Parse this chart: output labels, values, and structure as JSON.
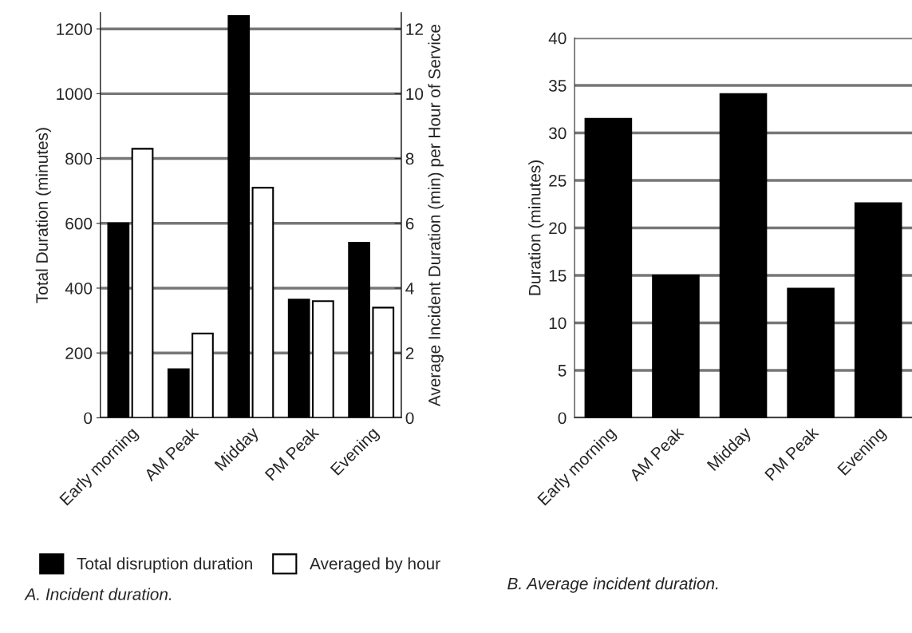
{
  "chart_data": [
    {
      "type": "bar",
      "categories": [
        "Early morning",
        "AM Peak",
        "Midday",
        "PM Peak",
        "Evening"
      ],
      "ylabel": "Total Duration (minutes)",
      "y2label": "Average Incident Duration (min) per Hour of Service",
      "series": [
        {
          "name": "Total disruption duration",
          "color": "#000000",
          "values": [
            600,
            150,
            1240,
            365,
            540
          ]
        },
        {
          "name": "Averaged by hour",
          "color": "#ffffff",
          "axis": "y2",
          "values": [
            8.3,
            2.6,
            7.1,
            3.6,
            3.4
          ]
        }
      ],
      "ylim": [
        0,
        1250
      ],
      "yticks": [
        0,
        200,
        400,
        600,
        800,
        1000,
        1200
      ],
      "y2lim": [
        0,
        12.5
      ],
      "y2ticks": [
        0,
        2,
        4,
        6,
        8,
        10,
        12
      ],
      "grid": "y",
      "legend": "bottom",
      "annotations": [
        "A. Incident duration."
      ]
    },
    {
      "type": "bar",
      "categories": [
        "Early morning",
        "AM Peak",
        "Midday",
        "PM Peak",
        "Evening"
      ],
      "ylabel": "Duration (minutes)",
      "series": [
        {
          "color": "#000000",
          "values": [
            31.5,
            15,
            34.1,
            13.6,
            22.6
          ]
        }
      ],
      "ylim": [
        0,
        40
      ],
      "yticks": [
        0,
        5,
        10,
        15,
        20,
        25,
        30,
        35,
        40
      ],
      "grid": "y",
      "annotations": [
        "B. Average incident duration."
      ]
    }
  ]
}
